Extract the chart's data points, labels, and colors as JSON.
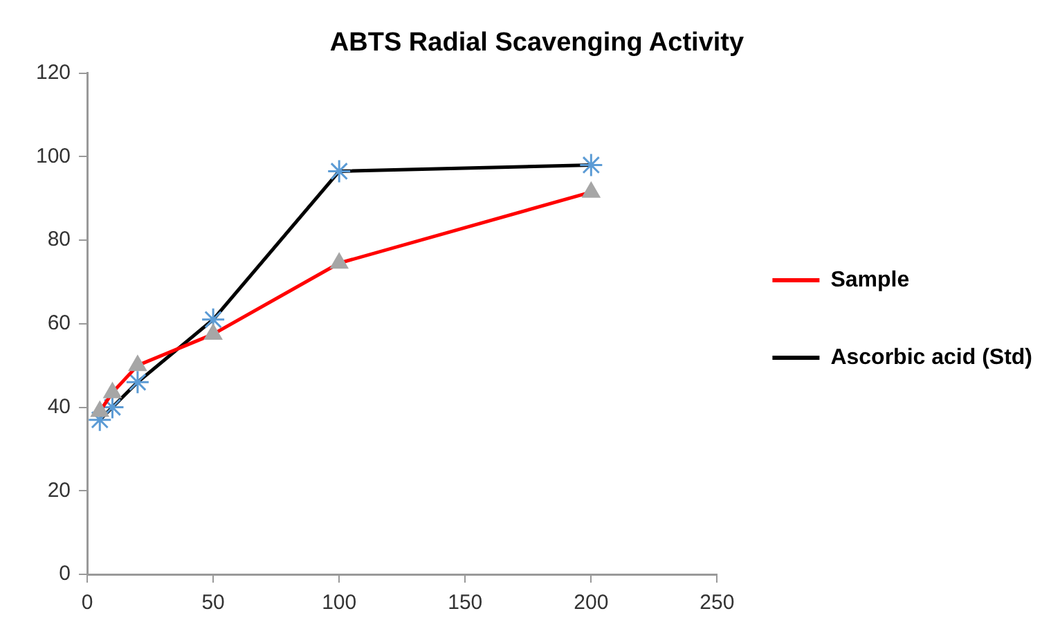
{
  "chart_data": {
    "type": "line",
    "title": "ABTS Radial Scavenging Activity",
    "x": [
      5,
      10,
      20,
      50,
      100,
      200
    ],
    "series": [
      {
        "name": "Sample",
        "color": "#ff0000",
        "marker": "triangle",
        "values": [
          39,
          43.5,
          50,
          57.5,
          74.5,
          91.5
        ]
      },
      {
        "name": "Ascorbic acid (Std)",
        "color": "#000000",
        "marker": "cross",
        "values": [
          37,
          40,
          46,
          61,
          96.5,
          98
        ]
      }
    ],
    "xlim": [
      0,
      250
    ],
    "xticks": [
      0,
      50,
      100,
      150,
      200,
      250
    ],
    "ylim": [
      0,
      120
    ],
    "yticks": [
      0,
      20,
      40,
      60,
      80,
      100,
      120
    ],
    "grid": false,
    "legend": "right"
  }
}
